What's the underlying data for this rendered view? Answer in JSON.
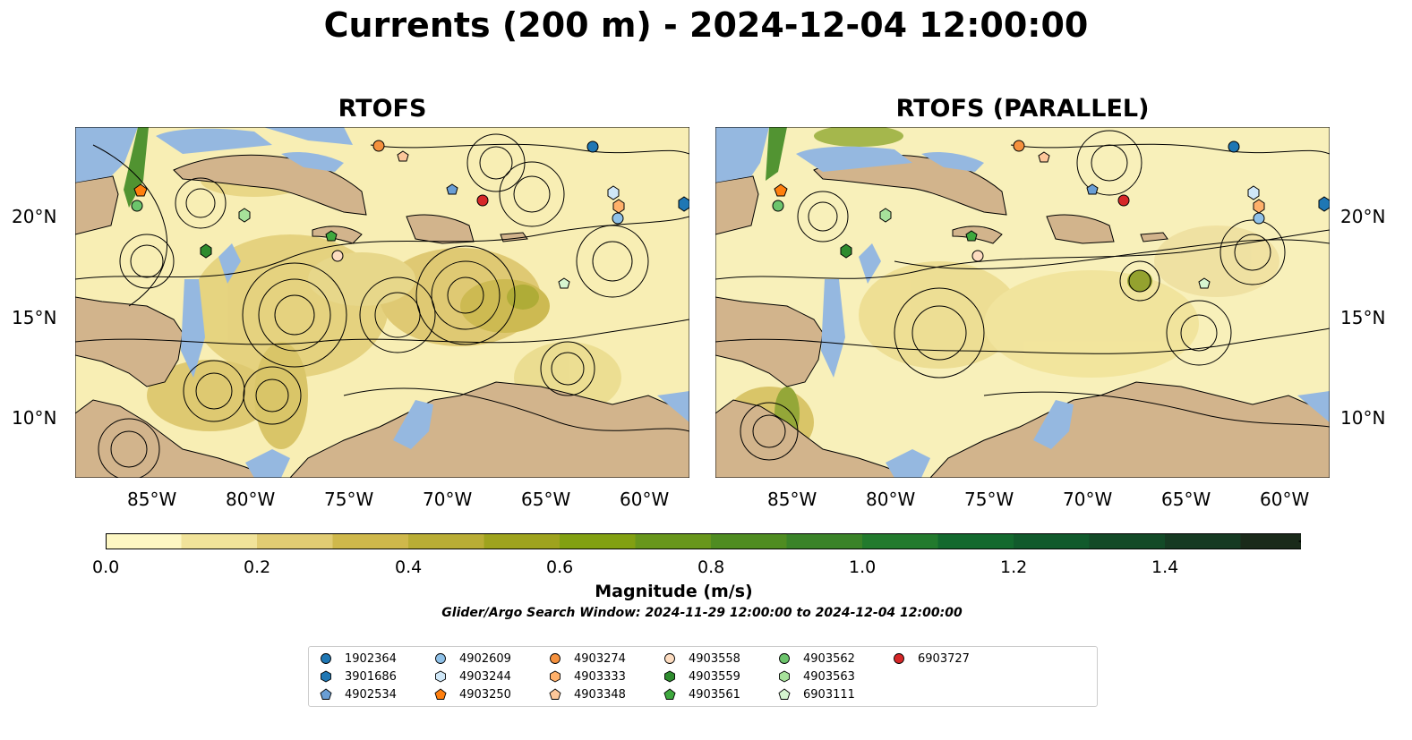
{
  "title": "Currents (200 m) - 2024-12-04 12:00:00",
  "panels": [
    {
      "label": "RTOFS"
    },
    {
      "label": "RTOFS (PARALLEL)"
    }
  ],
  "axes": {
    "lon_ticks": [
      "85°W",
      "80°W",
      "75°W",
      "70°W",
      "65°W",
      "60°W"
    ],
    "lat_ticks": [
      "20°N",
      "15°N",
      "10°N"
    ]
  },
  "colorbar": {
    "title": "Magnitude (m/s)",
    "ticks": [
      "0.0",
      "0.2",
      "0.4",
      "0.6",
      "0.8",
      "1.0",
      "1.2",
      "1.4"
    ],
    "colors": [
      "#fdf7c3",
      "#f1e39a",
      "#e1cc73",
      "#cfb84b",
      "#b9ad35",
      "#9ea31e",
      "#82a012",
      "#68961c",
      "#4f8c21",
      "#3a8328",
      "#227a2d",
      "#13692e",
      "#115a2c",
      "#134a27",
      "#163a22",
      "#1a2a1a"
    ]
  },
  "search_window": "Glider/Argo Search Window: 2024-11-29 12:00:00 to 2024-12-04 12:00:00",
  "legend": [
    {
      "id": "1902364",
      "marker": "circle",
      "color": "#1f77b4"
    },
    {
      "id": "3901686",
      "marker": "hexagon",
      "color": "#1f77b4"
    },
    {
      "id": "4902534",
      "marker": "pentagon",
      "color": "#6a9ed4"
    },
    {
      "id": "4902609",
      "marker": "circle",
      "color": "#8fc1e8"
    },
    {
      "id": "4903244",
      "marker": "hexagon",
      "color": "#cfe7f7"
    },
    {
      "id": "4903250",
      "marker": "pentagon",
      "color": "#ff7f0e"
    },
    {
      "id": "4903274",
      "marker": "circle",
      "color": "#f5913e"
    },
    {
      "id": "4903333",
      "marker": "hexagon",
      "color": "#ffb06a"
    },
    {
      "id": "4903348",
      "marker": "pentagon",
      "color": "#fdc79a"
    },
    {
      "id": "4903558",
      "marker": "circle",
      "color": "#fddcc0"
    },
    {
      "id": "4903559",
      "marker": "hexagon",
      "color": "#2e8b2e"
    },
    {
      "id": "4903561",
      "marker": "pentagon",
      "color": "#3ea83e"
    },
    {
      "id": "4903562",
      "marker": "circle",
      "color": "#6cc46c"
    },
    {
      "id": "4903563",
      "marker": "hexagon",
      "color": "#a7e29b"
    },
    {
      "id": "6903111",
      "marker": "pentagon",
      "color": "#d6f5d0"
    },
    {
      "id": "6903727",
      "marker": "circle",
      "color": "#d62728"
    }
  ]
}
